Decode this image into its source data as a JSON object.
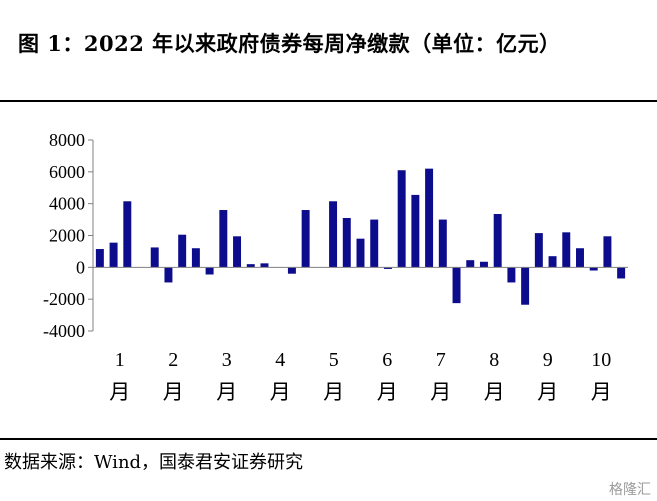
{
  "title": "图 1：2022 年以来政府债券每周净缴款（单位：亿元）",
  "source": "数据来源：Wind，国泰君安证券研究",
  "watermark": "格隆汇",
  "colors": {
    "bar": "#0c0c8c",
    "axis": "#808080"
  },
  "chart_data": {
    "type": "bar",
    "title": "",
    "xlabel": "",
    "ylabel": "",
    "ylim": [
      -4000,
      8000
    ],
    "yticks": [
      -4000,
      -2000,
      0,
      2000,
      4000,
      6000,
      8000
    ],
    "grid": false,
    "month_labels": [
      {
        "num": "1",
        "unit": "月"
      },
      {
        "num": "2",
        "unit": "月"
      },
      {
        "num": "3",
        "unit": "月"
      },
      {
        "num": "4",
        "unit": "月"
      },
      {
        "num": "5",
        "unit": "月"
      },
      {
        "num": "6",
        "unit": "月"
      },
      {
        "num": "7",
        "unit": "月"
      },
      {
        "num": "8",
        "unit": "月"
      },
      {
        "num": "9",
        "unit": "月"
      },
      {
        "num": "10",
        "unit": "月"
      }
    ],
    "values": [
      1150,
      1550,
      4150,
      0,
      1250,
      -950,
      2050,
      1200,
      -450,
      3600,
      1950,
      200,
      250,
      0,
      -400,
      3600,
      0,
      4150,
      3100,
      1800,
      3000,
      -100,
      6100,
      4550,
      6200,
      3000,
      -2250,
      450,
      350,
      3350,
      -950,
      -2350,
      2150,
      700,
      2200,
      1200,
      -200,
      1950,
      -700
    ]
  }
}
